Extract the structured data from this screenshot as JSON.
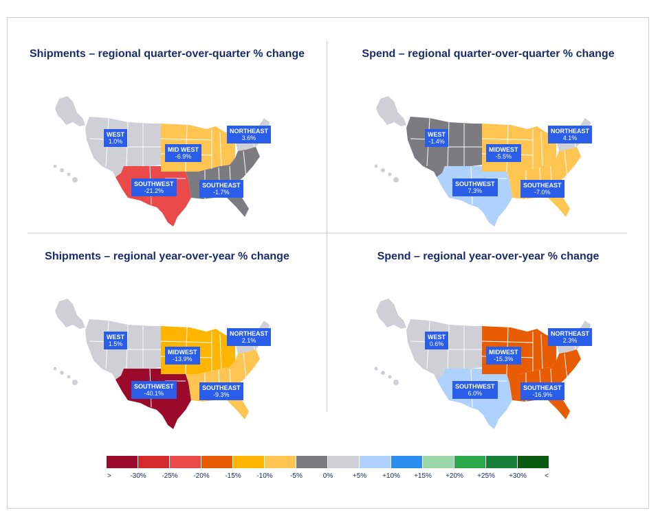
{
  "panels": [
    {
      "id": "shipments-qoq",
      "title": "Shipments – regional quarter-over-quarter % change",
      "regions": {
        "west": {
          "name": "WEST",
          "value": "1.0%",
          "color": "#cfcfd6"
        },
        "midwest": {
          "name": "MID WEST",
          "value": "-6.9%",
          "color": "#ffc550"
        },
        "northeast": {
          "name": "NORTHEAST",
          "value": "3.6%",
          "color": "#cfcfd6"
        },
        "southwest": {
          "name": "SOUTHWEST",
          "value": "-21.2%",
          "color": "#ea4a4a"
        },
        "southeast": {
          "name": "SOUTHEAST",
          "value": "-1.7%",
          "color": "#7b7b80"
        }
      }
    },
    {
      "id": "spend-qoq",
      "title": "Spend – regional quarter-over-quarter % change",
      "regions": {
        "west": {
          "name": "WEST",
          "value": "-1.4%",
          "color": "#7b7b80"
        },
        "midwest": {
          "name": "MIDWEST",
          "value": "-5.5%",
          "color": "#ffc550"
        },
        "northeast": {
          "name": "NORTHEAST",
          "value": "4.1%",
          "color": "#cfcfd6"
        },
        "southwest": {
          "name": "SOUTHWEST",
          "value": "7.3%",
          "color": "#aed2fb"
        },
        "southeast": {
          "name": "SOUTHEAST",
          "value": "-7.0%",
          "color": "#ffc550"
        }
      }
    },
    {
      "id": "shipments-yoy",
      "title": "Shipments – regional year-over-year % change",
      "regions": {
        "west": {
          "name": "WEST",
          "value": "1.5%",
          "color": "#cfcfd6"
        },
        "midwest": {
          "name": "MIDWEST",
          "value": "-13.9%",
          "color": "#ffb400"
        },
        "northeast": {
          "name": "NORTHEAST",
          "value": "2.1%",
          "color": "#cfcfd6"
        },
        "southwest": {
          "name": "SOUTHWEST",
          "value": "-40.1%",
          "color": "#9b0a2a"
        },
        "southeast": {
          "name": "SOUTHEAST",
          "value": "-9.3%",
          "color": "#ffc550"
        }
      }
    },
    {
      "id": "spend-yoy",
      "title": "Spend – regional year-over-year % change",
      "regions": {
        "west": {
          "name": "WEST",
          "value": "0.6%",
          "color": "#cfcfd6"
        },
        "midwest": {
          "name": "MIDWEST",
          "value": "-15.3%",
          "color": "#e85d04"
        },
        "northeast": {
          "name": "NORTHEAST",
          "value": "2.3%",
          "color": "#cfcfd6"
        },
        "southwest": {
          "name": "SOUTHWEST",
          "value": "6.0%",
          "color": "#aed2fb"
        },
        "southeast": {
          "name": "SOUTHEAST",
          "value": "-16.9%",
          "color": "#e85d04"
        }
      }
    }
  ],
  "legend": {
    "colors": [
      "#9b0a2a",
      "#d42a2a",
      "#ea4a4a",
      "#e85d04",
      "#ffb400",
      "#ffc550",
      "#7b7b80",
      "#cfcfd6",
      "#aed2fb",
      "#2a8ef0",
      "#9ad6a6",
      "#2aa84a",
      "#16803a",
      "#0a5a10"
    ],
    "labels": [
      ">",
      "-30%",
      "-25%",
      "-20%",
      "-15%",
      "-10%",
      "-5%",
      "0%",
      "+5%",
      "+10%",
      "+15%",
      "+20%",
      "+25%",
      "+30%",
      "<"
    ]
  }
}
